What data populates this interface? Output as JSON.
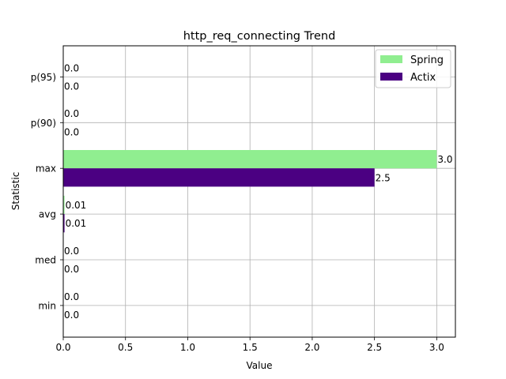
{
  "chart_data": {
    "type": "bar",
    "orientation": "horizontal",
    "title": "http_req_connecting Trend",
    "xlabel": "Value",
    "ylabel": "Statistic",
    "categories": [
      "min",
      "med",
      "avg",
      "max",
      "p(90)",
      "p(95)"
    ],
    "series": [
      {
        "name": "Spring",
        "values": [
          0.0,
          0.0,
          0.01,
          3.0,
          0.0,
          0.0
        ],
        "labels": [
          "0.0",
          "0.0",
          "0.01",
          "3.0",
          "0.0",
          "0.0"
        ],
        "color": "#90ee90"
      },
      {
        "name": "Actix",
        "values": [
          0.0,
          0.0,
          0.01,
          2.5,
          0.0,
          0.0
        ],
        "labels": [
          "0.0",
          "0.0",
          "0.01",
          "2.5",
          "0.0",
          "0.0"
        ],
        "color": "#4b0082"
      }
    ],
    "xlim": [
      0,
      3.15
    ],
    "xticks": [
      "0.0",
      "0.5",
      "1.0",
      "1.5",
      "2.0",
      "2.5",
      "3.0"
    ],
    "grid": true,
    "legend": "top-right"
  }
}
